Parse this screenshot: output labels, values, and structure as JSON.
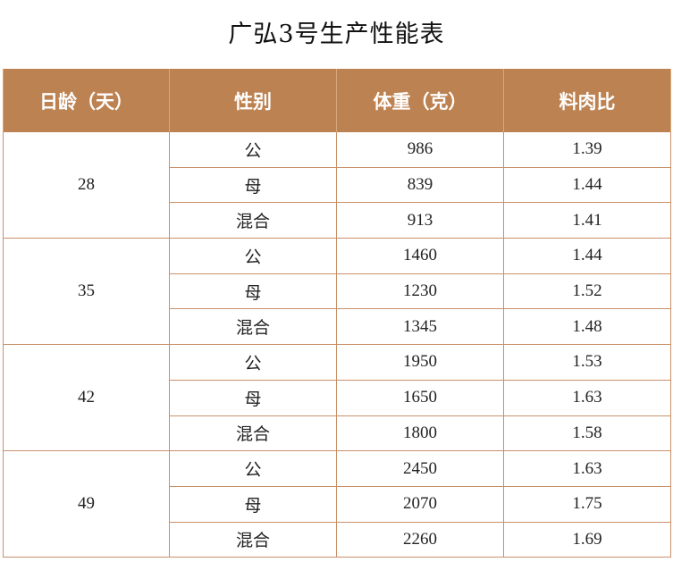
{
  "title": "广弘3号生产性能表",
  "table": {
    "headers": [
      "日龄（天）",
      "性别",
      "体重（克）",
      "料肉比"
    ],
    "groups": [
      {
        "age": "28",
        "rows": [
          {
            "sex": "公",
            "weight": "986",
            "ratio": "1.39"
          },
          {
            "sex": "母",
            "weight": "839",
            "ratio": "1.44"
          },
          {
            "sex": "混合",
            "weight": "913",
            "ratio": "1.41"
          }
        ]
      },
      {
        "age": "35",
        "rows": [
          {
            "sex": "公",
            "weight": "1460",
            "ratio": "1.44"
          },
          {
            "sex": "母",
            "weight": "1230",
            "ratio": "1.52"
          },
          {
            "sex": "混合",
            "weight": "1345",
            "ratio": "1.48"
          }
        ]
      },
      {
        "age": "42",
        "rows": [
          {
            "sex": "公",
            "weight": "1950",
            "ratio": "1.53"
          },
          {
            "sex": "母",
            "weight": "1650",
            "ratio": "1.63"
          },
          {
            "sex": "混合",
            "weight": "1800",
            "ratio": "1.58"
          }
        ]
      },
      {
        "age": "49",
        "rows": [
          {
            "sex": "公",
            "weight": "2450",
            "ratio": "1.63"
          },
          {
            "sex": "母",
            "weight": "2070",
            "ratio": "1.75"
          },
          {
            "sex": "混合",
            "weight": "2260",
            "ratio": "1.69"
          }
        ]
      }
    ]
  }
}
